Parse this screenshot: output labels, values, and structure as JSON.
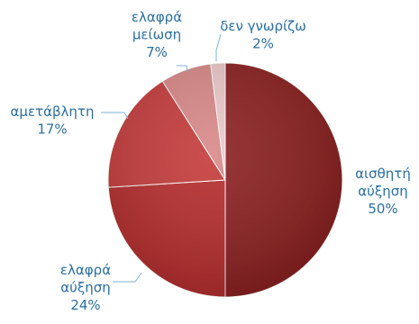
{
  "chart_data": {
    "type": "pie",
    "start_angle_deg": 0,
    "direction": "clockwise",
    "slices": [
      {
        "label": [
          "αισθητή",
          "αύξηση"
        ],
        "pct_label": "50%",
        "value": 50,
        "color": "#8b1e1e"
      },
      {
        "label": [
          "ελαφρά",
          "αύξηση"
        ],
        "pct_label": "24%",
        "value": 24,
        "color": "#b52b2b"
      },
      {
        "label": [
          "αμετάβλητη"
        ],
        "pct_label": "17%",
        "value": 17,
        "color": "#c53a3a"
      },
      {
        "label": [
          "ελαφρά",
          "μείωση"
        ],
        "pct_label": "7%",
        "value": 7,
        "color": "#d98888"
      },
      {
        "label": [
          "δεν γνωρίζω"
        ],
        "pct_label": "2%",
        "value": 2,
        "color": "#ecc9c9"
      }
    ],
    "legend": "none",
    "title": ""
  }
}
